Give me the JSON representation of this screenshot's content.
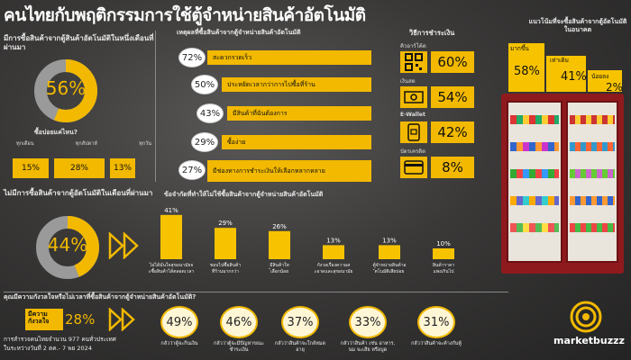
{
  "title": "คนไทยกับพฤติกรรมการใช้ตู้จำหน่ายสินค้าอัตโนมัติ",
  "left_panel": {
    "heading": "มีการซื้อสินค้าจากตู้สินค้าอัตโนมัติในหนึ่งเดือนที่ผ่านมา",
    "donut_value": "56%",
    "donut_fraction": 0.56,
    "frequency_question": "ซื้อบ่อยแค่ไหน?",
    "frequency": [
      {
        "label": "ทุกเดือน",
        "value": "15%"
      },
      {
        "label": "ทุกสัปดาห์",
        "value": "28%"
      },
      {
        "label": "ทุกวัน",
        "value": "13%"
      }
    ]
  },
  "reasons_panel": {
    "heading": "เหตุผลที่ซื้อสินค้าจากตู้จำหน่ายสินค้าอัตโนมัติ",
    "items": [
      {
        "pct": "72%",
        "text": "สะดวกรวดเร็ว"
      },
      {
        "pct": "50%",
        "text": "ประหยัดเวลากว่าการไปซื้อที่ร้าน"
      },
      {
        "pct": "43%",
        "text": "มีสินค้าที่ฉันต้องการ"
      },
      {
        "pct": "29%",
        "text": "ซื้อง่าย"
      },
      {
        "pct": "27%",
        "text": "มีช่องทางการชำระเงินให้เลือกหลากหลาย"
      }
    ]
  },
  "payment_panel": {
    "heading": "วิธีการชำระเงิน",
    "items": [
      {
        "label": "คิวอาร์โค้ด",
        "icon": "qr-code-icon",
        "value": "60%"
      },
      {
        "label": "เงินสด",
        "icon": "cash-icon",
        "value": "54%"
      },
      {
        "label": "E-Wallet",
        "icon": "wallet-icon",
        "value": "42%"
      },
      {
        "label": "บัตรเครดิต",
        "icon": "credit-card-icon",
        "value": "8%"
      }
    ]
  },
  "trend_panel": {
    "heading": "แนวโน้มที่จะซื้อสินค้าจากตู้อัตโนมัติในอนาคต",
    "items": [
      {
        "label": "มากขึ้น",
        "value": "58%"
      },
      {
        "label": "เท่าเดิม",
        "value": "41%"
      },
      {
        "label": "น้อยลง",
        "value": "2%"
      }
    ]
  },
  "nonbuyer_panel": {
    "heading": "ไม่มีการซื้อสินค้าจากตู้อัตโนมัติในเดือนที่ผ่านมา",
    "donut_value": "44%",
    "donut_fraction": 0.44
  },
  "limits_panel": {
    "heading": "ข้อจำกัดที่ทำให้ไม่ใช้ซื้อสินค้าจากตู้จำหน่ายสินค้าอัตโนมัติ",
    "chart_data": {
      "type": "bar",
      "categories": [
        "ไม่ได้มั่นใจสุขอนามัยจะซื้อสินค้าได้ตลอดเวลา",
        "ชอบไปซื้อสินค้าที่ร้านมากกว่า",
        "มีสินค้าให้เลือกน้อย",
        "กังวลเรื่องความสะอาดและสุขอนามัย",
        "ตู้จำหน่ายสินค้าอัตโนมัติเสียบ่อย",
        "สินค้าราคาแพงเกินไป"
      ],
      "values": [
        41,
        29,
        26,
        13,
        13,
        10
      ],
      "labels": [
        "41%",
        "29%",
        "26%",
        "13%",
        "13%",
        "10%"
      ],
      "ylim": [
        0,
        45
      ]
    }
  },
  "worry_panel": {
    "heading": "คุณมีความกังวลใจหรือไม่เวลาที่ซื้อสินค้าจากตู้จำหน่ายสินค้าอัตโนมัติ?",
    "worried_label": "มีความกังวลใจ",
    "worried_value": "28%",
    "items": [
      {
        "value": "49%",
        "label": "กลัวว่าตู้จะกินเงิน"
      },
      {
        "value": "46%",
        "label": "กลัวว่าตู้จะมีปัญหาขณะชำระเงิน"
      },
      {
        "value": "37%",
        "label": "กลัวว่าสินค้าจะใกล้หมดอายุ"
      },
      {
        "value": "33%",
        "label": "กลัวว่าสินค้า เช่น อาหาร, นม จะเสีย หรือบูด"
      },
      {
        "value": "31%",
        "label": "กลัวว่าสินค้าจะค้างกับตู้"
      }
    ]
  },
  "footer": {
    "line1": "การสำรวจคนไทยจำนวน 977 คนทั่วประเทศ",
    "line2": "ในระหว่างวันที่ 2 ตค.- 7 พย 2024"
  },
  "brand": "marketbuzzz",
  "colors": {
    "accent": "#f2b900",
    "vending": "#9c1b1e"
  }
}
